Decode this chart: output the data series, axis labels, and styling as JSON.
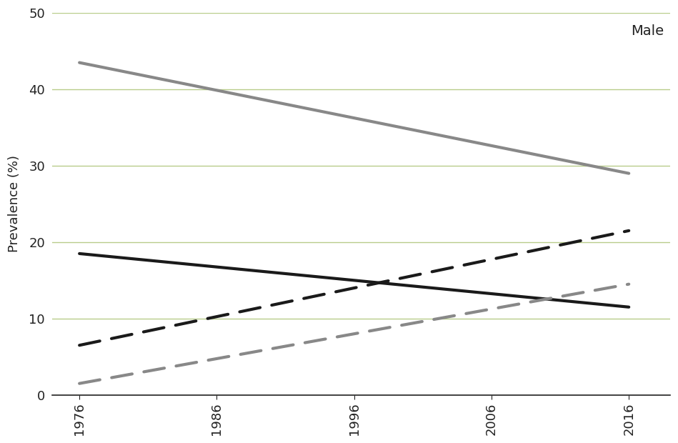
{
  "title": "Male",
  "ylabel": "Prevalence (%)",
  "xlim": [
    1974,
    2019
  ],
  "ylim": [
    0,
    50
  ],
  "yticks": [
    0,
    10,
    20,
    30,
    40,
    50
  ],
  "xticks": [
    1976,
    1986,
    1996,
    2006,
    2016
  ],
  "grid_color": "#b8cc8a",
  "background_color": "#ffffff",
  "series": [
    {
      "name": "gray_solid",
      "x": [
        1976,
        2016
      ],
      "y": [
        43.5,
        29.0
      ],
      "color": "#888888",
      "linestyle": "solid",
      "linewidth": 3.0
    },
    {
      "name": "black_solid",
      "x": [
        1976,
        2016
      ],
      "y": [
        18.5,
        11.5
      ],
      "color": "#1a1a1a",
      "linestyle": "solid",
      "linewidth": 3.0
    },
    {
      "name": "black_dashed",
      "x": [
        1976,
        2016
      ],
      "y": [
        6.5,
        21.5
      ],
      "color": "#1a1a1a",
      "linestyle": "dashed",
      "linewidth": 3.0,
      "dash_on": 7,
      "dash_off": 4
    },
    {
      "name": "gray_dashed",
      "x": [
        1976,
        2016
      ],
      "y": [
        1.5,
        14.5
      ],
      "color": "#888888",
      "linestyle": "dashed",
      "linewidth": 3.0,
      "dash_on": 7,
      "dash_off": 4
    }
  ]
}
